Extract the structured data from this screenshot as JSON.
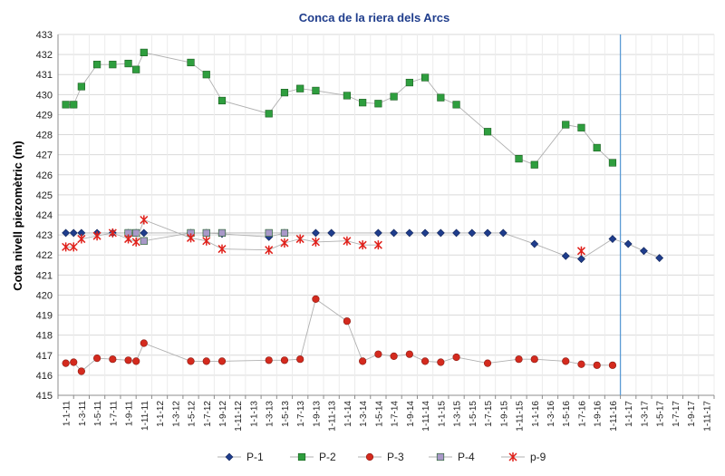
{
  "chart_data": {
    "type": "line",
    "title": "Conca de la riera dels Arcs",
    "xlabel": "",
    "ylabel": "Cota nivell piezomètric (m)",
    "ylim": [
      415,
      433
    ],
    "yticks": [
      415,
      416,
      417,
      418,
      419,
      420,
      421,
      422,
      423,
      424,
      425,
      426,
      427,
      428,
      429,
      430,
      431,
      432,
      433
    ],
    "xticks": [
      "1-1-11",
      "1-3-11",
      "1-5-11",
      "1-7-11",
      "1-9-11",
      "1-11-11",
      "1-1-12",
      "1-3-12",
      "1-5-12",
      "1-7-12",
      "1-9-12",
      "1-11-12",
      "1-1-13",
      "1-3-13",
      "1-5-13",
      "1-7-13",
      "1-9-13",
      "1-11-13",
      "1-1-14",
      "1-3-14",
      "1-5-14",
      "1-7-14",
      "1-9-14",
      "1-11-14",
      "1-1-15",
      "1-3-15",
      "1-5-15",
      "1-7-15",
      "1-9-15",
      "1-11-15",
      "1-1-16",
      "1-3-16",
      "1-5-16",
      "1-7-16",
      "1-9-16",
      "1-11-16",
      "1-1-17",
      "1-3-17",
      "1-5-17",
      "1-7-17",
      "1-9-17",
      "1-11-17"
    ],
    "vline_x": 36,
    "grid": true,
    "legend_position": "bottom",
    "colors": {
      "P-1": "#1f3d8c",
      "P-2": "#2e9e3e",
      "P-3": "#d42a1e",
      "P-4": "#a898c8",
      "p-9": "#e0201a",
      "vline": "#5b9bd5",
      "connector": "#b0b0b0",
      "title": "#1f3d8c"
    },
    "series": [
      {
        "name": "P-1",
        "marker": "diamond",
        "points": [
          [
            0,
            423.1
          ],
          [
            0.5,
            423.1
          ],
          [
            1,
            423.1
          ],
          [
            2,
            423.1
          ],
          [
            3,
            423.1
          ],
          [
            4,
            423.1
          ],
          [
            4.5,
            423.1
          ],
          [
            5,
            423.1
          ],
          [
            8,
            423.1
          ],
          [
            9,
            423.1
          ],
          [
            10,
            423.05
          ],
          [
            13,
            422.9
          ],
          [
            14,
            423.1
          ],
          [
            16,
            423.1
          ],
          [
            17,
            423.1
          ],
          [
            20,
            423.1
          ],
          [
            21,
            423.1
          ],
          [
            22,
            423.1
          ],
          [
            23,
            423.1
          ],
          [
            24,
            423.1
          ],
          [
            25,
            423.1
          ],
          [
            26,
            423.1
          ],
          [
            27,
            423.1
          ],
          [
            28,
            423.1
          ],
          [
            30,
            422.55
          ],
          [
            32,
            421.95
          ],
          [
            33,
            421.8
          ],
          [
            35,
            422.8
          ],
          [
            36,
            422.55
          ],
          [
            37,
            422.2
          ],
          [
            38,
            421.85
          ]
        ]
      },
      {
        "name": "P-2",
        "marker": "square",
        "points": [
          [
            0,
            429.5
          ],
          [
            0.5,
            429.5
          ],
          [
            1,
            430.4
          ],
          [
            2,
            431.5
          ],
          [
            3,
            431.5
          ],
          [
            4,
            431.55
          ],
          [
            4.5,
            431.25
          ],
          [
            5,
            432.1
          ],
          [
            8,
            431.6
          ],
          [
            9,
            431.0
          ],
          [
            10,
            429.7
          ],
          [
            13,
            429.05
          ],
          [
            14,
            430.1
          ],
          [
            15,
            430.3
          ],
          [
            16,
            430.2
          ],
          [
            18,
            429.95
          ],
          [
            19,
            429.6
          ],
          [
            20,
            429.55
          ],
          [
            21,
            429.9
          ],
          [
            22,
            430.6
          ],
          [
            23,
            430.85
          ],
          [
            24,
            429.85
          ],
          [
            25,
            429.5
          ],
          [
            27,
            428.15
          ],
          [
            29,
            426.8
          ],
          [
            30,
            426.5
          ],
          [
            32,
            428.5
          ],
          [
            33,
            428.35
          ],
          [
            34,
            427.35
          ],
          [
            35,
            426.6
          ]
        ]
      },
      {
        "name": "P-3",
        "marker": "circle",
        "points": [
          [
            0,
            416.6
          ],
          [
            0.5,
            416.65
          ],
          [
            1,
            416.2
          ],
          [
            2,
            416.85
          ],
          [
            3,
            416.8
          ],
          [
            4,
            416.75
          ],
          [
            4.5,
            416.7
          ],
          [
            5,
            417.6
          ],
          [
            8,
            416.7
          ],
          [
            9,
            416.7
          ],
          [
            10,
            416.7
          ],
          [
            13,
            416.75
          ],
          [
            14,
            416.75
          ],
          [
            15,
            416.8
          ],
          [
            16,
            419.8
          ],
          [
            18,
            418.7
          ],
          [
            19,
            416.7
          ],
          [
            20,
            417.05
          ],
          [
            21,
            416.95
          ],
          [
            22,
            417.05
          ],
          [
            23,
            416.7
          ],
          [
            24,
            416.65
          ],
          [
            25,
            416.9
          ],
          [
            27,
            416.6
          ],
          [
            29,
            416.8
          ],
          [
            30,
            416.8
          ],
          [
            32,
            416.7
          ],
          [
            33,
            416.55
          ],
          [
            34,
            416.5
          ],
          [
            35,
            416.5
          ]
        ]
      },
      {
        "name": "P-4",
        "marker": "square",
        "points": [
          [
            4,
            423.1
          ],
          [
            4.5,
            423.1
          ],
          [
            5,
            422.7
          ],
          [
            8,
            423.1
          ],
          [
            9,
            423.1
          ],
          [
            10,
            423.1
          ],
          [
            13,
            423.1
          ],
          [
            14,
            423.1
          ]
        ]
      },
      {
        "name": "p-9",
        "marker": "x",
        "points": [
          [
            0,
            422.4
          ],
          [
            0.5,
            422.4
          ],
          [
            1,
            422.8
          ],
          [
            2,
            422.95
          ],
          [
            3,
            423.1
          ],
          [
            4,
            422.8
          ],
          [
            4.5,
            422.65
          ],
          [
            5,
            423.75
          ],
          [
            8,
            422.85
          ],
          [
            9,
            422.7
          ],
          [
            10,
            422.3
          ],
          [
            13,
            422.25
          ],
          [
            14,
            422.6
          ],
          [
            15,
            422.8
          ],
          [
            16,
            422.65
          ],
          [
            18,
            422.7
          ],
          [
            19,
            422.5
          ],
          [
            20,
            422.5
          ],
          [
            33,
            422.2
          ]
        ]
      }
    ]
  }
}
